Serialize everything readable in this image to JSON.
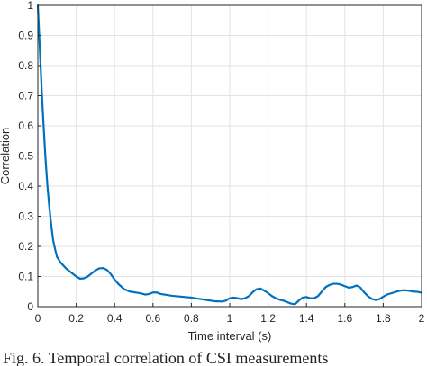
{
  "chart_data": {
    "type": "line",
    "title": "",
    "xlabel": "Time interval (s)",
    "ylabel": "Correlation",
    "xlim": [
      0,
      2
    ],
    "ylim": [
      0,
      1
    ],
    "xticks": [
      "0",
      "0.2",
      "0.4",
      "0.6",
      "0.8",
      "1",
      "1.2",
      "1.4",
      "1.6",
      "1.8",
      "2"
    ],
    "xtick_values": [
      0,
      0.2,
      0.4,
      0.6,
      0.8,
      1.0,
      1.2,
      1.4,
      1.6,
      1.8,
      2.0
    ],
    "yticks": [
      "0",
      "0.1",
      "0.2",
      "0.3",
      "0.4",
      "0.5",
      "0.6",
      "0.7",
      "0.8",
      "0.9",
      "1"
    ],
    "ytick_values": [
      0,
      0.1,
      0.2,
      0.3,
      0.4,
      0.5,
      0.6,
      0.7,
      0.8,
      0.9,
      1.0
    ],
    "grid": true,
    "line_color": "#0072BD",
    "series": [
      {
        "x": [
          0,
          0.01,
          0.02,
          0.03,
          0.04,
          0.05,
          0.06,
          0.07,
          0.08,
          0.09,
          0.1,
          0.12,
          0.15,
          0.18,
          0.2,
          0.22,
          0.24,
          0.26,
          0.28,
          0.3,
          0.32,
          0.34,
          0.36,
          0.38,
          0.4,
          0.42,
          0.45,
          0.48,
          0.5,
          0.53,
          0.56,
          0.58,
          0.6,
          0.62,
          0.64,
          0.66,
          0.7,
          0.75,
          0.8,
          0.84,
          0.88,
          0.92,
          0.96,
          0.98,
          1.0,
          1.02,
          1.04,
          1.06,
          1.08,
          1.1,
          1.12,
          1.14,
          1.16,
          1.18,
          1.2,
          1.22,
          1.24,
          1.26,
          1.28,
          1.3,
          1.32,
          1.34,
          1.36,
          1.38,
          1.4,
          1.42,
          1.44,
          1.46,
          1.48,
          1.5,
          1.52,
          1.54,
          1.56,
          1.58,
          1.6,
          1.62,
          1.64,
          1.66,
          1.68,
          1.7,
          1.72,
          1.74,
          1.76,
          1.78,
          1.8,
          1.82,
          1.84,
          1.86,
          1.88,
          1.9,
          1.92,
          1.94,
          1.96,
          1.98,
          2.0
        ],
        "y": [
          1.0,
          0.86,
          0.72,
          0.6,
          0.49,
          0.4,
          0.33,
          0.27,
          0.22,
          0.19,
          0.165,
          0.145,
          0.125,
          0.11,
          0.1,
          0.093,
          0.094,
          0.1,
          0.11,
          0.12,
          0.127,
          0.128,
          0.122,
          0.108,
          0.09,
          0.075,
          0.058,
          0.05,
          0.048,
          0.045,
          0.04,
          0.042,
          0.047,
          0.047,
          0.042,
          0.04,
          0.036,
          0.033,
          0.03,
          0.026,
          0.022,
          0.018,
          0.017,
          0.02,
          0.028,
          0.03,
          0.028,
          0.025,
          0.028,
          0.035,
          0.048,
          0.058,
          0.06,
          0.053,
          0.045,
          0.035,
          0.028,
          0.023,
          0.02,
          0.015,
          0.01,
          0.008,
          0.02,
          0.03,
          0.032,
          0.028,
          0.028,
          0.035,
          0.05,
          0.065,
          0.072,
          0.076,
          0.076,
          0.073,
          0.068,
          0.063,
          0.065,
          0.07,
          0.064,
          0.048,
          0.035,
          0.026,
          0.022,
          0.025,
          0.033,
          0.04,
          0.044,
          0.048,
          0.052,
          0.054,
          0.054,
          0.052,
          0.05,
          0.049,
          0.046
        ]
      }
    ]
  },
  "caption_text": "Fig. 6.  Temporal correlation of CSI measurements"
}
